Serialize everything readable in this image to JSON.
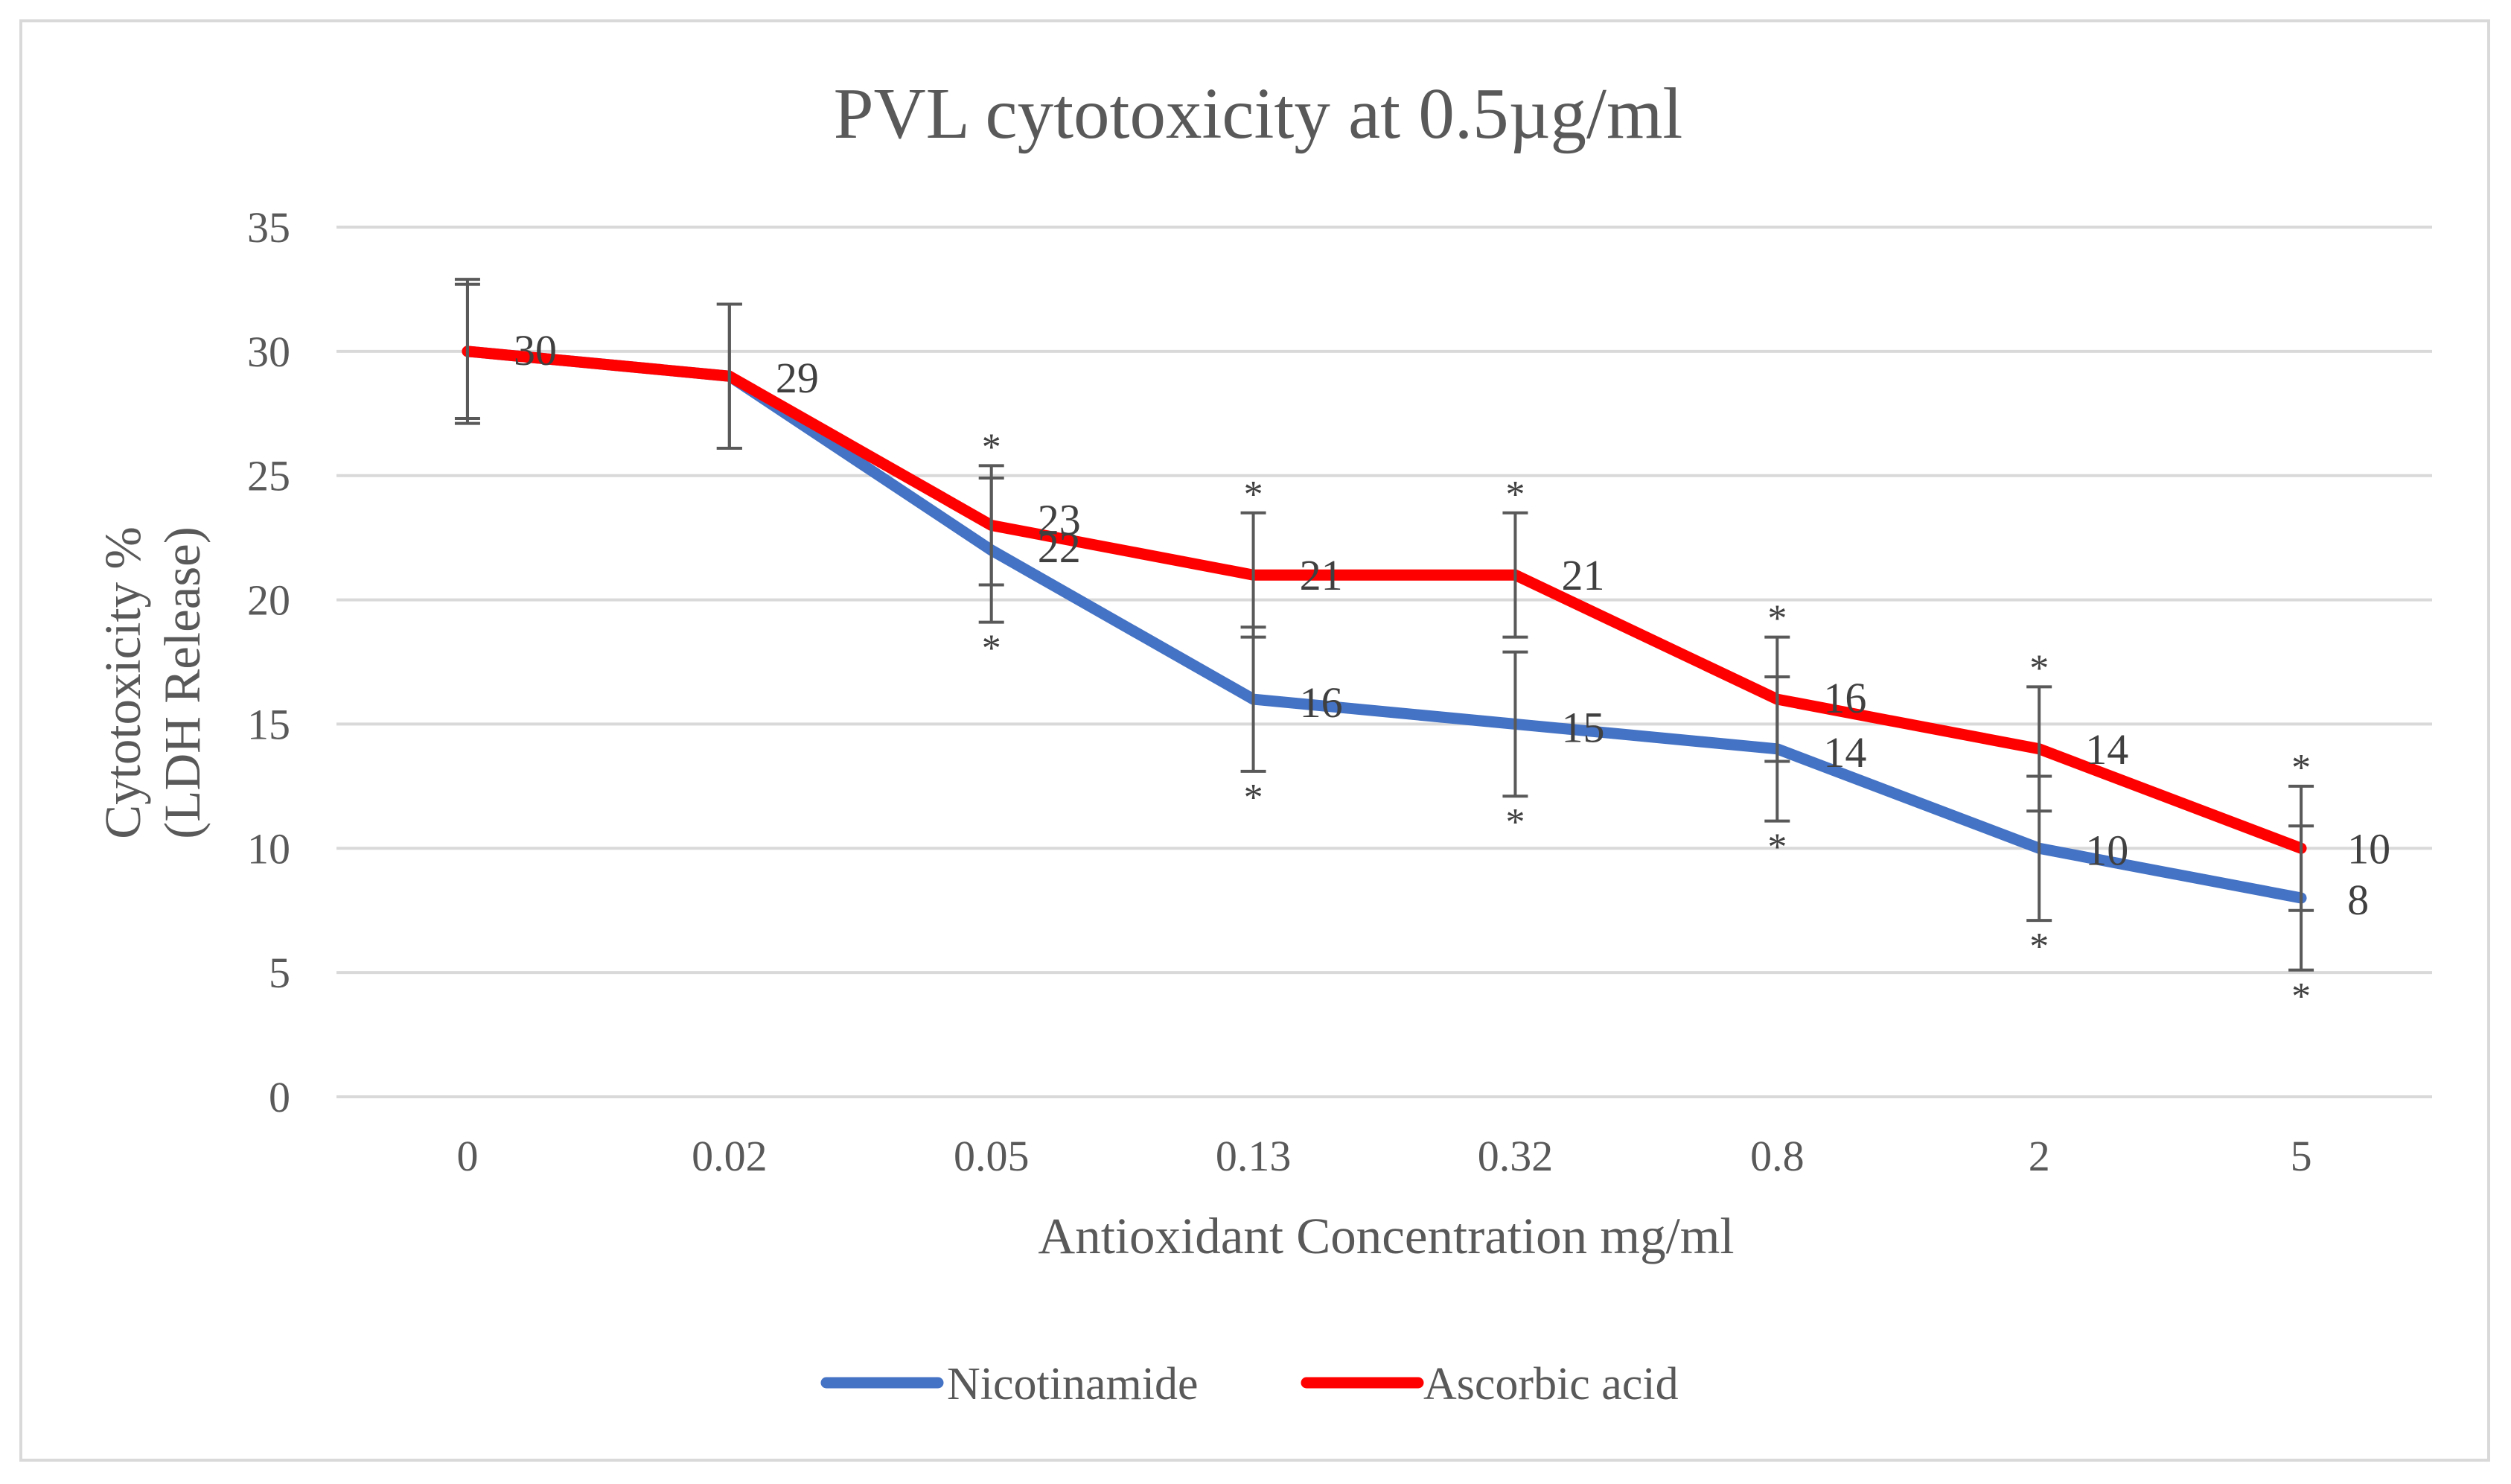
{
  "chart_data": {
    "type": "line",
    "title": "PVL cytotoxicity at 0.5µg/ml",
    "xlabel": "Antioxidant Concentration mg/ml",
    "ylabel_line1": "Cytotoxicity %",
    "ylabel_line2": "(LDH Release)",
    "categories": [
      "0",
      "0.02",
      "0.05",
      "0.13",
      "0.32",
      "0.8",
      "2",
      "5"
    ],
    "ylim": [
      0,
      35
    ],
    "yticks": [
      "0",
      "5",
      "10",
      "15",
      "20",
      "25",
      "30",
      "35"
    ],
    "grid": true,
    "legend_position": "bottom",
    "series": [
      {
        "name": "Nicotinamide",
        "color": "#4472c4",
        "values": [
          30,
          29,
          22,
          16,
          15,
          14,
          10,
          8
        ],
        "labels": [
          "30",
          "29",
          "22",
          "16",
          "15",
          "14",
          "10",
          "8"
        ],
        "error": [
          2.7,
          2.9,
          2.9,
          2.9,
          2.9,
          2.9,
          2.9,
          2.9
        ],
        "significance": [
          "",
          "",
          "*",
          "*",
          "*",
          "*",
          "*",
          "*"
        ]
      },
      {
        "name": "Ascorbic acid",
        "color": "#ff0000",
        "values": [
          30,
          29,
          23,
          21,
          21,
          16,
          14,
          10
        ],
        "labels": [
          "30",
          "29",
          "23",
          "21",
          "21",
          "16",
          "14",
          "10"
        ],
        "error": [
          2.9,
          2.9,
          2.4,
          2.5,
          2.5,
          2.5,
          2.5,
          2.5
        ],
        "significance": [
          "",
          "",
          "*",
          "*",
          "*",
          "*",
          "*",
          "*"
        ]
      }
    ]
  }
}
